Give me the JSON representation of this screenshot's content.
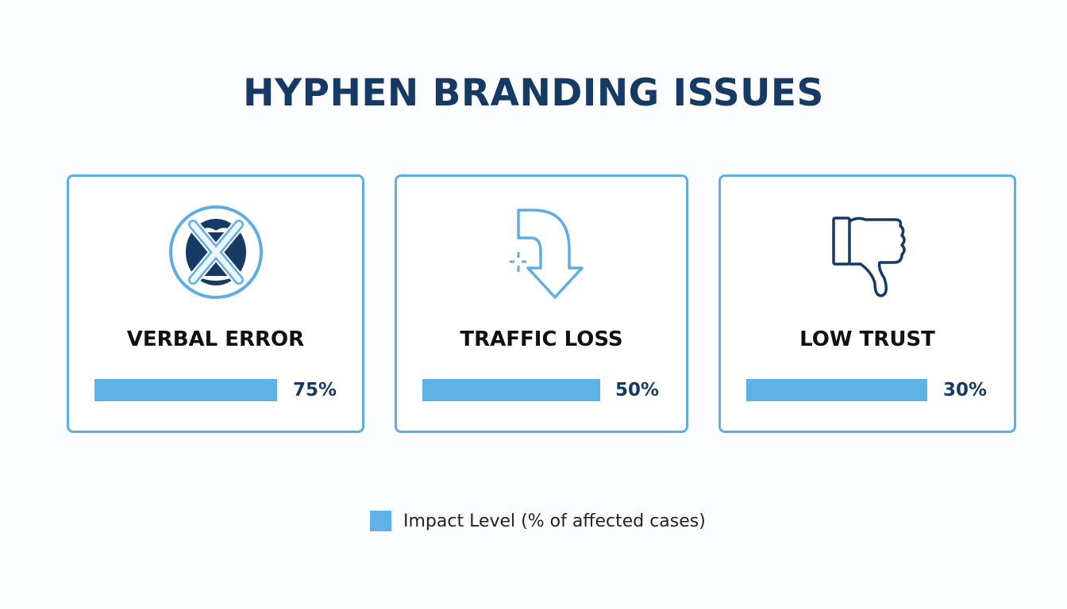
{
  "title": "HYPHEN BRANDING ISSUES",
  "colors": {
    "accent": "#5eb2e6",
    "dark": "#163a63"
  },
  "chart_data": {
    "type": "bar",
    "title": "HYPHEN BRANDING ISSUES",
    "categories": [
      "VERBAL ERROR",
      "TRAFFIC LOSS",
      "LOW TRUST"
    ],
    "values": [
      75,
      50,
      30
    ],
    "value_labels": [
      "75%",
      "50%",
      "30%"
    ],
    "icons": [
      "crossed-mouth-icon",
      "down-turn-arrow-icon",
      "thumbs-down-icon"
    ],
    "series": [
      {
        "name": "Impact Level (% of affected cases)",
        "values": [
          75,
          50,
          30
        ]
      }
    ],
    "legend_position": "bottom",
    "grid": false
  },
  "legend": {
    "label": "Impact Level (% of affected cases)"
  }
}
